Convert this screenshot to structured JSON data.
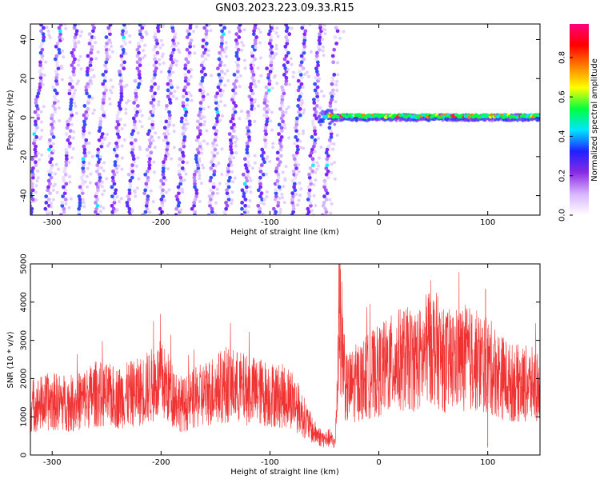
{
  "title": "GN03.2023.223.09.33.R15",
  "chart_data": [
    {
      "type": "heatmap",
      "xlabel": "Height of straight line (km)",
      "ylabel": "Frequency (Hz)",
      "xlim": [
        -320,
        148
      ],
      "ylim": [
        -50,
        48
      ],
      "xticks": [
        -300,
        -200,
        -100,
        0,
        100
      ],
      "yticks": [
        -40,
        -20,
        0,
        20,
        40
      ],
      "description_regions": [
        {
          "x_range": [
            -320,
            -45
          ],
          "pattern": "broadband diagonal striations"
        },
        {
          "x_range": [
            -55,
            148
          ],
          "pattern": "narrow band near 0 Hz",
          "frequency": 0
        }
      ],
      "colorbar": {
        "label": "Normalized spectral amplitude",
        "range": [
          0.0,
          0.97
        ],
        "ticks": [
          0.0,
          0.2,
          0.4,
          0.6,
          0.8
        ],
        "tick_labels": [
          "0.0",
          "0.2",
          "0.4",
          "0.6",
          "0.8"
        ],
        "colors": [
          "#ffffff",
          "#d8b4ff",
          "#8a2be2",
          "#2020ff",
          "#00e5ff",
          "#00ff40",
          "#ffff00",
          "#ff8000",
          "#ff0000",
          "#ff0080"
        ]
      }
    },
    {
      "type": "line",
      "xlabel": "Height of straight line (km)",
      "ylabel": "SNR (10 * v/v)",
      "xlim": [
        -320,
        148
      ],
      "ylim": [
        0,
        5000
      ],
      "xticks": [
        -300,
        -200,
        -100,
        0,
        100
      ],
      "yticks": [
        0,
        1000,
        2000,
        3000,
        4000,
        5000
      ],
      "color": "#f03232",
      "x": [
        -320,
        -300,
        -280,
        -260,
        -240,
        -220,
        -200,
        -180,
        -160,
        -140,
        -120,
        -100,
        -80,
        -60,
        -50,
        -45,
        -40,
        -36,
        -30,
        -20,
        -10,
        0,
        20,
        40,
        47,
        60,
        80,
        100,
        120,
        148
      ],
      "y": [
        1300,
        1400,
        1350,
        1600,
        1500,
        1650,
        1950,
        1300,
        1600,
        1850,
        1700,
        1600,
        1500,
        600,
        400,
        450,
        300,
        3700,
        1700,
        1900,
        2050,
        2200,
        2500,
        2500,
        3000,
        2450,
        2550,
        2350,
        1900,
        1800
      ]
    }
  ]
}
